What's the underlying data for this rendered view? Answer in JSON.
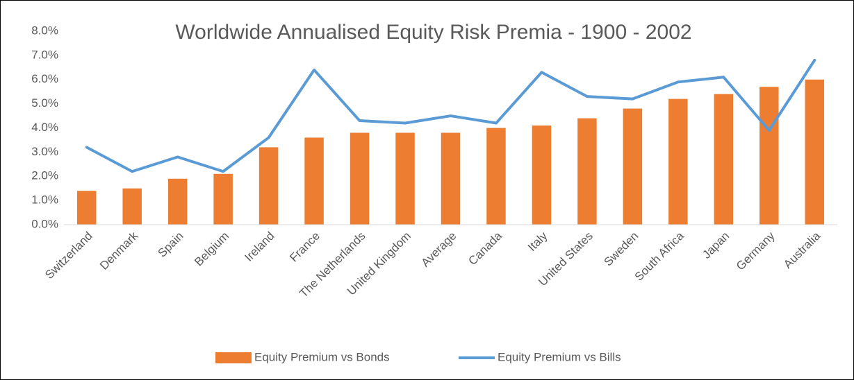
{
  "chart_data": {
    "type": "bar",
    "title": "Worldwide Annualised Equity Risk Premia - 1900 - 2002",
    "categories": [
      "Switzerland",
      "Denmark",
      "Spain",
      "Belgium",
      "Ireland",
      "France",
      "The Netherlands",
      "United Kingdom",
      "Average",
      "Canada",
      "Italy",
      "United States",
      "Sweden",
      "South Africa",
      "Japan",
      "Germany",
      "Australia"
    ],
    "series": [
      {
        "name": "Equity Premium vs Bonds",
        "type": "bar",
        "color": "#ed7d31",
        "values": [
          1.4,
          1.5,
          1.9,
          2.1,
          3.2,
          3.6,
          3.8,
          3.8,
          3.8,
          4.0,
          4.1,
          4.4,
          4.8,
          5.2,
          5.4,
          5.7,
          6.0
        ]
      },
      {
        "name": "Equity Premium vs Bills",
        "type": "line",
        "color": "#5b9bd5",
        "values": [
          3.2,
          2.2,
          2.8,
          2.2,
          3.6,
          6.4,
          4.3,
          4.2,
          4.5,
          4.2,
          6.3,
          5.3,
          5.2,
          5.9,
          6.1,
          3.9,
          6.8
        ]
      }
    ],
    "ylim": [
      0,
      8
    ],
    "yticks": [
      {
        "value": 0,
        "label": "0.0%"
      },
      {
        "value": 1,
        "label": "1.0%"
      },
      {
        "value": 2,
        "label": "2.0%"
      },
      {
        "value": 3,
        "label": "3.0%"
      },
      {
        "value": 4,
        "label": "4.0%"
      },
      {
        "value": 5,
        "label": "5.0%"
      },
      {
        "value": 6,
        "label": "6.0%"
      },
      {
        "value": 7,
        "label": "7.0%"
      },
      {
        "value": 8,
        "label": "8.0%"
      }
    ],
    "grid": false,
    "legend": "bottom"
  }
}
